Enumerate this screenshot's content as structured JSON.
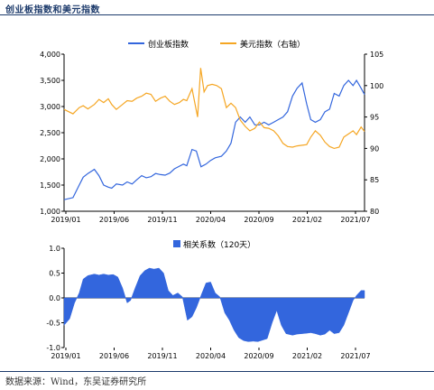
{
  "page": {
    "title": "创业板指数和美元指数",
    "source": "数据来源：Wind，东吴证券研究所"
  },
  "colors": {
    "series_a": "#3366dd",
    "series_b": "#f5a623",
    "fill": "#3366dd",
    "axis": "#000000",
    "grid": "#cccccc",
    "text": "#000000"
  },
  "chart_data": [
    {
      "type": "line",
      "x_tick_labels": [
        "2019/01",
        "2019/06",
        "2019/11",
        "2020/04",
        "2020/09",
        "2021/02",
        "2021/07"
      ],
      "x_range": [
        "2019-01-02",
        "2021-08-31"
      ],
      "grid": false,
      "legend_position": "top-center",
      "y_left": {
        "ticks": [
          "1,000",
          "1,500",
          "2,000",
          "2,500",
          "3,000",
          "3,500",
          "4,000"
        ],
        "range": [
          1000,
          4000
        ]
      },
      "y_right": {
        "ticks": [
          "80",
          "85",
          "90",
          "95",
          "100",
          "105"
        ],
        "range": [
          80,
          105
        ]
      },
      "series": [
        {
          "name": "创业板指数",
          "axis": "left",
          "points": [
            [
              "2019-01-02",
              1220
            ],
            [
              "2019-01-31",
              1260
            ],
            [
              "2019-02-20",
              1500
            ],
            [
              "2019-03-05",
              1650
            ],
            [
              "2019-03-20",
              1720
            ],
            [
              "2019-04-10",
              1800
            ],
            [
              "2019-04-25",
              1680
            ],
            [
              "2019-05-10",
              1500
            ],
            [
              "2019-05-25",
              1460
            ],
            [
              "2019-06-05",
              1440
            ],
            [
              "2019-06-20",
              1520
            ],
            [
              "2019-07-10",
              1500
            ],
            [
              "2019-07-25",
              1560
            ],
            [
              "2019-08-10",
              1520
            ],
            [
              "2019-08-25",
              1600
            ],
            [
              "2019-09-10",
              1680
            ],
            [
              "2019-09-25",
              1640
            ],
            [
              "2019-10-10",
              1660
            ],
            [
              "2019-10-25",
              1720
            ],
            [
              "2019-11-10",
              1700
            ],
            [
              "2019-11-25",
              1690
            ],
            [
              "2019-12-10",
              1730
            ],
            [
              "2019-12-25",
              1810
            ],
            [
              "2020-01-10",
              1860
            ],
            [
              "2020-01-23",
              1900
            ],
            [
              "2020-02-03",
              1870
            ],
            [
              "2020-02-20",
              2180
            ],
            [
              "2020-03-05",
              2150
            ],
            [
              "2020-03-20",
              1850
            ],
            [
              "2020-04-05",
              1900
            ],
            [
              "2020-04-20",
              1970
            ],
            [
              "2020-05-05",
              2020
            ],
            [
              "2020-05-25",
              2050
            ],
            [
              "2020-06-10",
              2150
            ],
            [
              "2020-06-25",
              2300
            ],
            [
              "2020-07-10",
              2700
            ],
            [
              "2020-07-25",
              2800
            ],
            [
              "2020-08-10",
              2700
            ],
            [
              "2020-08-25",
              2800
            ],
            [
              "2020-09-10",
              2650
            ],
            [
              "2020-09-25",
              2650
            ],
            [
              "2020-10-10",
              2700
            ],
            [
              "2020-10-25",
              2650
            ],
            [
              "2020-11-10",
              2700
            ],
            [
              "2020-11-25",
              2750
            ],
            [
              "2020-12-10",
              2800
            ],
            [
              "2020-12-25",
              2900
            ],
            [
              "2021-01-10",
              3200
            ],
            [
              "2021-01-25",
              3350
            ],
            [
              "2021-02-10",
              3450
            ],
            [
              "2021-02-25",
              3050
            ],
            [
              "2021-03-10",
              2750
            ],
            [
              "2021-03-25",
              2700
            ],
            [
              "2021-04-10",
              2750
            ],
            [
              "2021-04-25",
              2900
            ],
            [
              "2021-05-10",
              2950
            ],
            [
              "2021-05-25",
              3250
            ],
            [
              "2021-06-10",
              3200
            ],
            [
              "2021-06-25",
              3400
            ],
            [
              "2021-07-10",
              3500
            ],
            [
              "2021-07-25",
              3400
            ],
            [
              "2021-08-05",
              3500
            ],
            [
              "2021-08-20",
              3350
            ],
            [
              "2021-08-31",
              3230
            ]
          ]
        },
        {
          "name": "美元指数（右轴）",
          "axis": "right",
          "points": [
            [
              "2019-01-02",
              96.2
            ],
            [
              "2019-01-31",
              95.5
            ],
            [
              "2019-02-20",
              96.5
            ],
            [
              "2019-03-05",
              96.8
            ],
            [
              "2019-03-20",
              96.3
            ],
            [
              "2019-04-10",
              97.0
            ],
            [
              "2019-04-25",
              97.8
            ],
            [
              "2019-05-10",
              97.3
            ],
            [
              "2019-05-25",
              97.9
            ],
            [
              "2019-06-05",
              97.0
            ],
            [
              "2019-06-20",
              96.2
            ],
            [
              "2019-07-10",
              97.0
            ],
            [
              "2019-07-25",
              97.6
            ],
            [
              "2019-08-10",
              97.5
            ],
            [
              "2019-08-25",
              98.0
            ],
            [
              "2019-09-10",
              98.3
            ],
            [
              "2019-09-25",
              98.8
            ],
            [
              "2019-10-10",
              98.6
            ],
            [
              "2019-10-25",
              97.5
            ],
            [
              "2019-11-10",
              98.0
            ],
            [
              "2019-11-25",
              98.3
            ],
            [
              "2019-12-10",
              97.5
            ],
            [
              "2019-12-25",
              97.0
            ],
            [
              "2020-01-10",
              97.3
            ],
            [
              "2020-01-23",
              97.8
            ],
            [
              "2020-02-03",
              97.6
            ],
            [
              "2020-02-20",
              99.5
            ],
            [
              "2020-03-09",
              95.0
            ],
            [
              "2020-03-19",
              102.8
            ],
            [
              "2020-03-30",
              99.0
            ],
            [
              "2020-04-10",
              100.0
            ],
            [
              "2020-04-25",
              100.2
            ],
            [
              "2020-05-10",
              100.0
            ],
            [
              "2020-05-25",
              99.5
            ],
            [
              "2020-06-10",
              96.5
            ],
            [
              "2020-06-25",
              97.2
            ],
            [
              "2020-07-10",
              96.5
            ],
            [
              "2020-07-25",
              94.5
            ],
            [
              "2020-08-10",
              93.5
            ],
            [
              "2020-08-25",
              92.8
            ],
            [
              "2020-09-10",
              93.2
            ],
            [
              "2020-09-25",
              94.2
            ],
            [
              "2020-10-10",
              93.3
            ],
            [
              "2020-10-25",
              93.2
            ],
            [
              "2020-11-10",
              92.8
            ],
            [
              "2020-11-25",
              92.0
            ],
            [
              "2020-12-10",
              90.8
            ],
            [
              "2020-12-25",
              90.3
            ],
            [
              "2021-01-10",
              90.2
            ],
            [
              "2021-01-25",
              90.4
            ],
            [
              "2021-02-10",
              90.5
            ],
            [
              "2021-02-25",
              90.6
            ],
            [
              "2021-03-10",
              91.8
            ],
            [
              "2021-03-25",
              92.8
            ],
            [
              "2021-04-10",
              92.1
            ],
            [
              "2021-04-25",
              91.0
            ],
            [
              "2021-05-10",
              90.3
            ],
            [
              "2021-05-25",
              90.0
            ],
            [
              "2021-06-10",
              90.2
            ],
            [
              "2021-06-25",
              91.8
            ],
            [
              "2021-07-10",
              92.3
            ],
            [
              "2021-07-25",
              92.8
            ],
            [
              "2021-08-05",
              92.2
            ],
            [
              "2021-08-20",
              93.4
            ],
            [
              "2021-08-31",
              92.7
            ]
          ]
        }
      ]
    },
    {
      "type": "area",
      "x_tick_labels": [
        "2019/01",
        "2019/06",
        "2019/11",
        "2020/04",
        "2020/09",
        "2021/02",
        "2021/07"
      ],
      "x_range": [
        "2019-01-02",
        "2021-08-31"
      ],
      "grid": false,
      "legend_position": "top-center",
      "y": {
        "ticks": [
          "1.0",
          "0.5",
          "0.0",
          "-0.5",
          "-1.0"
        ],
        "range": [
          -1.0,
          1.0
        ]
      },
      "series": [
        {
          "name": "相关系数（120天）",
          "points": [
            [
              "2019-01-02",
              -0.55
            ],
            [
              "2019-01-20",
              -0.42
            ],
            [
              "2019-02-05",
              -0.1
            ],
            [
              "2019-02-20",
              0.1
            ],
            [
              "2019-03-05",
              0.38
            ],
            [
              "2019-03-20",
              0.45
            ],
            [
              "2019-04-10",
              0.48
            ],
            [
              "2019-04-25",
              0.46
            ],
            [
              "2019-05-10",
              0.48
            ],
            [
              "2019-05-25",
              0.46
            ],
            [
              "2019-06-10",
              0.47
            ],
            [
              "2019-06-25",
              0.42
            ],
            [
              "2019-07-10",
              0.2
            ],
            [
              "2019-07-25",
              -0.1
            ],
            [
              "2019-08-05",
              -0.05
            ],
            [
              "2019-08-20",
              0.2
            ],
            [
              "2019-09-05",
              0.45
            ],
            [
              "2019-09-20",
              0.55
            ],
            [
              "2019-10-05",
              0.6
            ],
            [
              "2019-10-20",
              0.58
            ],
            [
              "2019-11-05",
              0.6
            ],
            [
              "2019-11-20",
              0.5
            ],
            [
              "2019-12-05",
              0.15
            ],
            [
              "2019-12-20",
              0.05
            ],
            [
              "2020-01-05",
              0.1
            ],
            [
              "2020-01-20",
              0.02
            ],
            [
              "2020-02-05",
              -0.45
            ],
            [
              "2020-02-20",
              -0.38
            ],
            [
              "2020-03-05",
              -0.2
            ],
            [
              "2020-03-20",
              0.05
            ],
            [
              "2020-04-05",
              0.3
            ],
            [
              "2020-04-20",
              0.32
            ],
            [
              "2020-05-05",
              0.1
            ],
            [
              "2020-05-20",
              0.02
            ],
            [
              "2020-06-05",
              -0.3
            ],
            [
              "2020-06-20",
              -0.45
            ],
            [
              "2020-07-05",
              -0.65
            ],
            [
              "2020-07-20",
              -0.8
            ],
            [
              "2020-08-05",
              -0.86
            ],
            [
              "2020-08-20",
              -0.88
            ],
            [
              "2020-09-05",
              -0.87
            ],
            [
              "2020-09-20",
              -0.88
            ],
            [
              "2020-10-05",
              -0.85
            ],
            [
              "2020-10-20",
              -0.82
            ],
            [
              "2020-11-05",
              -0.5
            ],
            [
              "2020-11-20",
              -0.25
            ],
            [
              "2020-12-05",
              -0.55
            ],
            [
              "2020-12-20",
              -0.72
            ],
            [
              "2021-01-10",
              -0.75
            ],
            [
              "2021-01-25",
              -0.73
            ],
            [
              "2021-02-10",
              -0.72
            ],
            [
              "2021-02-25",
              -0.71
            ],
            [
              "2021-03-10",
              -0.7
            ],
            [
              "2021-03-25",
              -0.72
            ],
            [
              "2021-04-10",
              -0.75
            ],
            [
              "2021-04-25",
              -0.73
            ],
            [
              "2021-05-10",
              -0.65
            ],
            [
              "2021-05-25",
              -0.72
            ],
            [
              "2021-06-10",
              -0.7
            ],
            [
              "2021-06-25",
              -0.55
            ],
            [
              "2021-07-10",
              -0.3
            ],
            [
              "2021-07-25",
              -0.05
            ],
            [
              "2021-08-05",
              0.05
            ],
            [
              "2021-08-20",
              0.15
            ],
            [
              "2021-08-31",
              0.15
            ]
          ]
        }
      ]
    }
  ]
}
